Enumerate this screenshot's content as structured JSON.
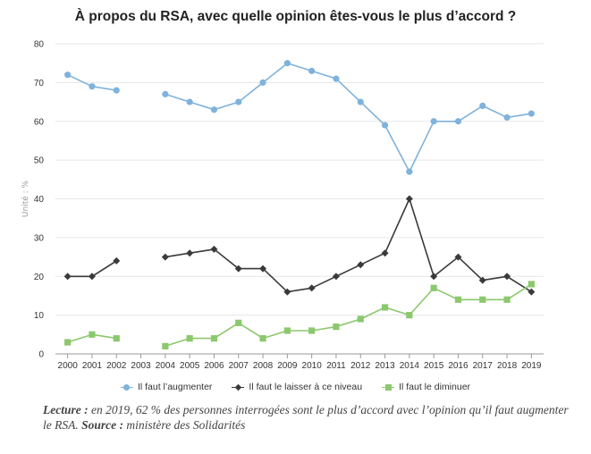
{
  "chart_data": {
    "type": "line",
    "title": "À propos du RSA, avec quelle opinion êtes-vous le plus d’accord ?",
    "ylabel": "Unité : %",
    "xlabel": "",
    "ylim": [
      0,
      80
    ],
    "yticks": [
      "0",
      "10",
      "20",
      "30",
      "40",
      "50",
      "60",
      "70",
      "80"
    ],
    "categories": [
      "2000",
      "2001",
      "2002",
      "2003",
      "2004",
      "2005",
      "2006",
      "2007",
      "2008",
      "2009",
      "2010",
      "2011",
      "2012",
      "2013",
      "2014",
      "2015",
      "2016",
      "2017",
      "2018",
      "2019"
    ],
    "grid": true,
    "legend_position": "bottom",
    "series": [
      {
        "name": "Il faut l’augmenter",
        "color": "#7fb2dc",
        "marker": "circle",
        "values": [
          72,
          69,
          68,
          null,
          67,
          65,
          63,
          65,
          70,
          75,
          73,
          71,
          65,
          59,
          47,
          60,
          60,
          64,
          61,
          62
        ]
      },
      {
        "name": "Il faut le laisser à ce niveau",
        "color": "#3a3a3a",
        "marker": "diamond",
        "values": [
          20,
          20,
          24,
          null,
          25,
          26,
          27,
          22,
          22,
          16,
          17,
          20,
          23,
          26,
          40,
          20,
          25,
          19,
          20,
          16
        ]
      },
      {
        "name": "Il faut le diminuer",
        "color": "#8cc86e",
        "marker": "square",
        "values": [
          3,
          5,
          4,
          null,
          2,
          4,
          4,
          8,
          4,
          6,
          6,
          7,
          9,
          12,
          10,
          17,
          14,
          14,
          14,
          18
        ]
      }
    ]
  },
  "caption": {
    "lecture_label": "Lecture :",
    "lecture_text": " en 2019, 62 % des personnes interrogées sont le plus d’accord avec l’opinion qu’il faut augmenter le RSA. ",
    "source_label": "Source :",
    "source_text": " ministère des Solidarités"
  }
}
